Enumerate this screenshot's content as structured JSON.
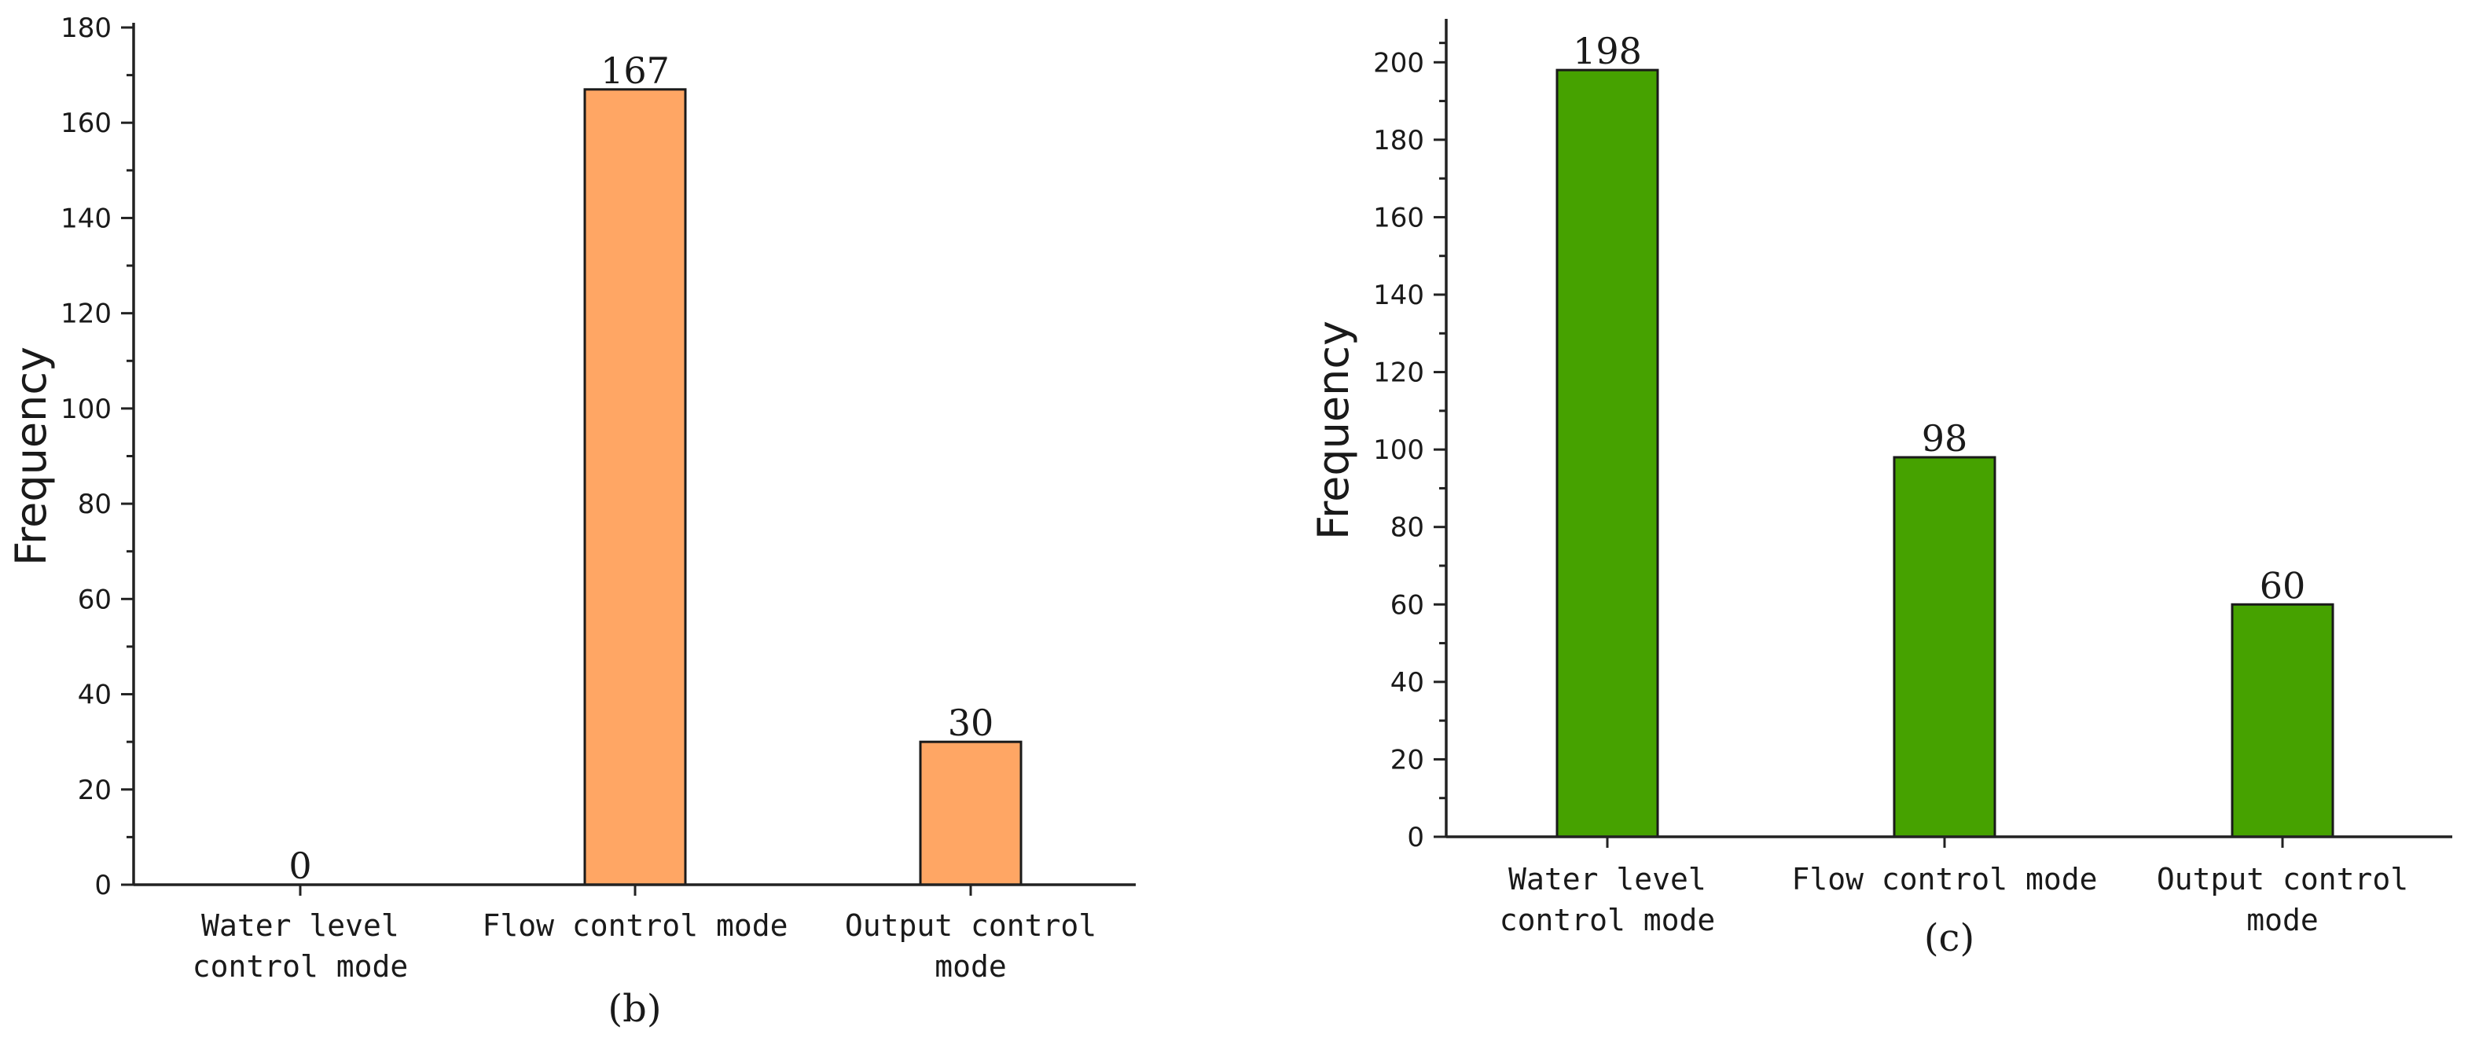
{
  "chart_data": [
    {
      "type": "bar",
      "panel_label": "(b)",
      "ylabel": "Frequency",
      "ylim": [
        0,
        180
      ],
      "yticks": [
        0,
        20,
        40,
        60,
        80,
        100,
        120,
        140,
        160,
        180
      ],
      "categories": [
        [
          "Water level",
          "control mode"
        ],
        [
          "Flow control mode"
        ],
        [
          "Output control",
          "mode"
        ]
      ],
      "values": [
        0,
        167,
        30
      ],
      "bar_color": "#FFA664"
    },
    {
      "type": "bar",
      "panel_label": "(c)",
      "ylabel": "Frequency",
      "ylim": [
        0,
        210
      ],
      "yticks": [
        0,
        20,
        40,
        60,
        80,
        100,
        120,
        140,
        160,
        180,
        200
      ],
      "categories": [
        [
          "Water level",
          "control mode"
        ],
        [
          "Flow control mode"
        ],
        [
          "Output control",
          "mode"
        ]
      ],
      "values": [
        198,
        98,
        60
      ],
      "bar_color": "#46A200"
    }
  ]
}
